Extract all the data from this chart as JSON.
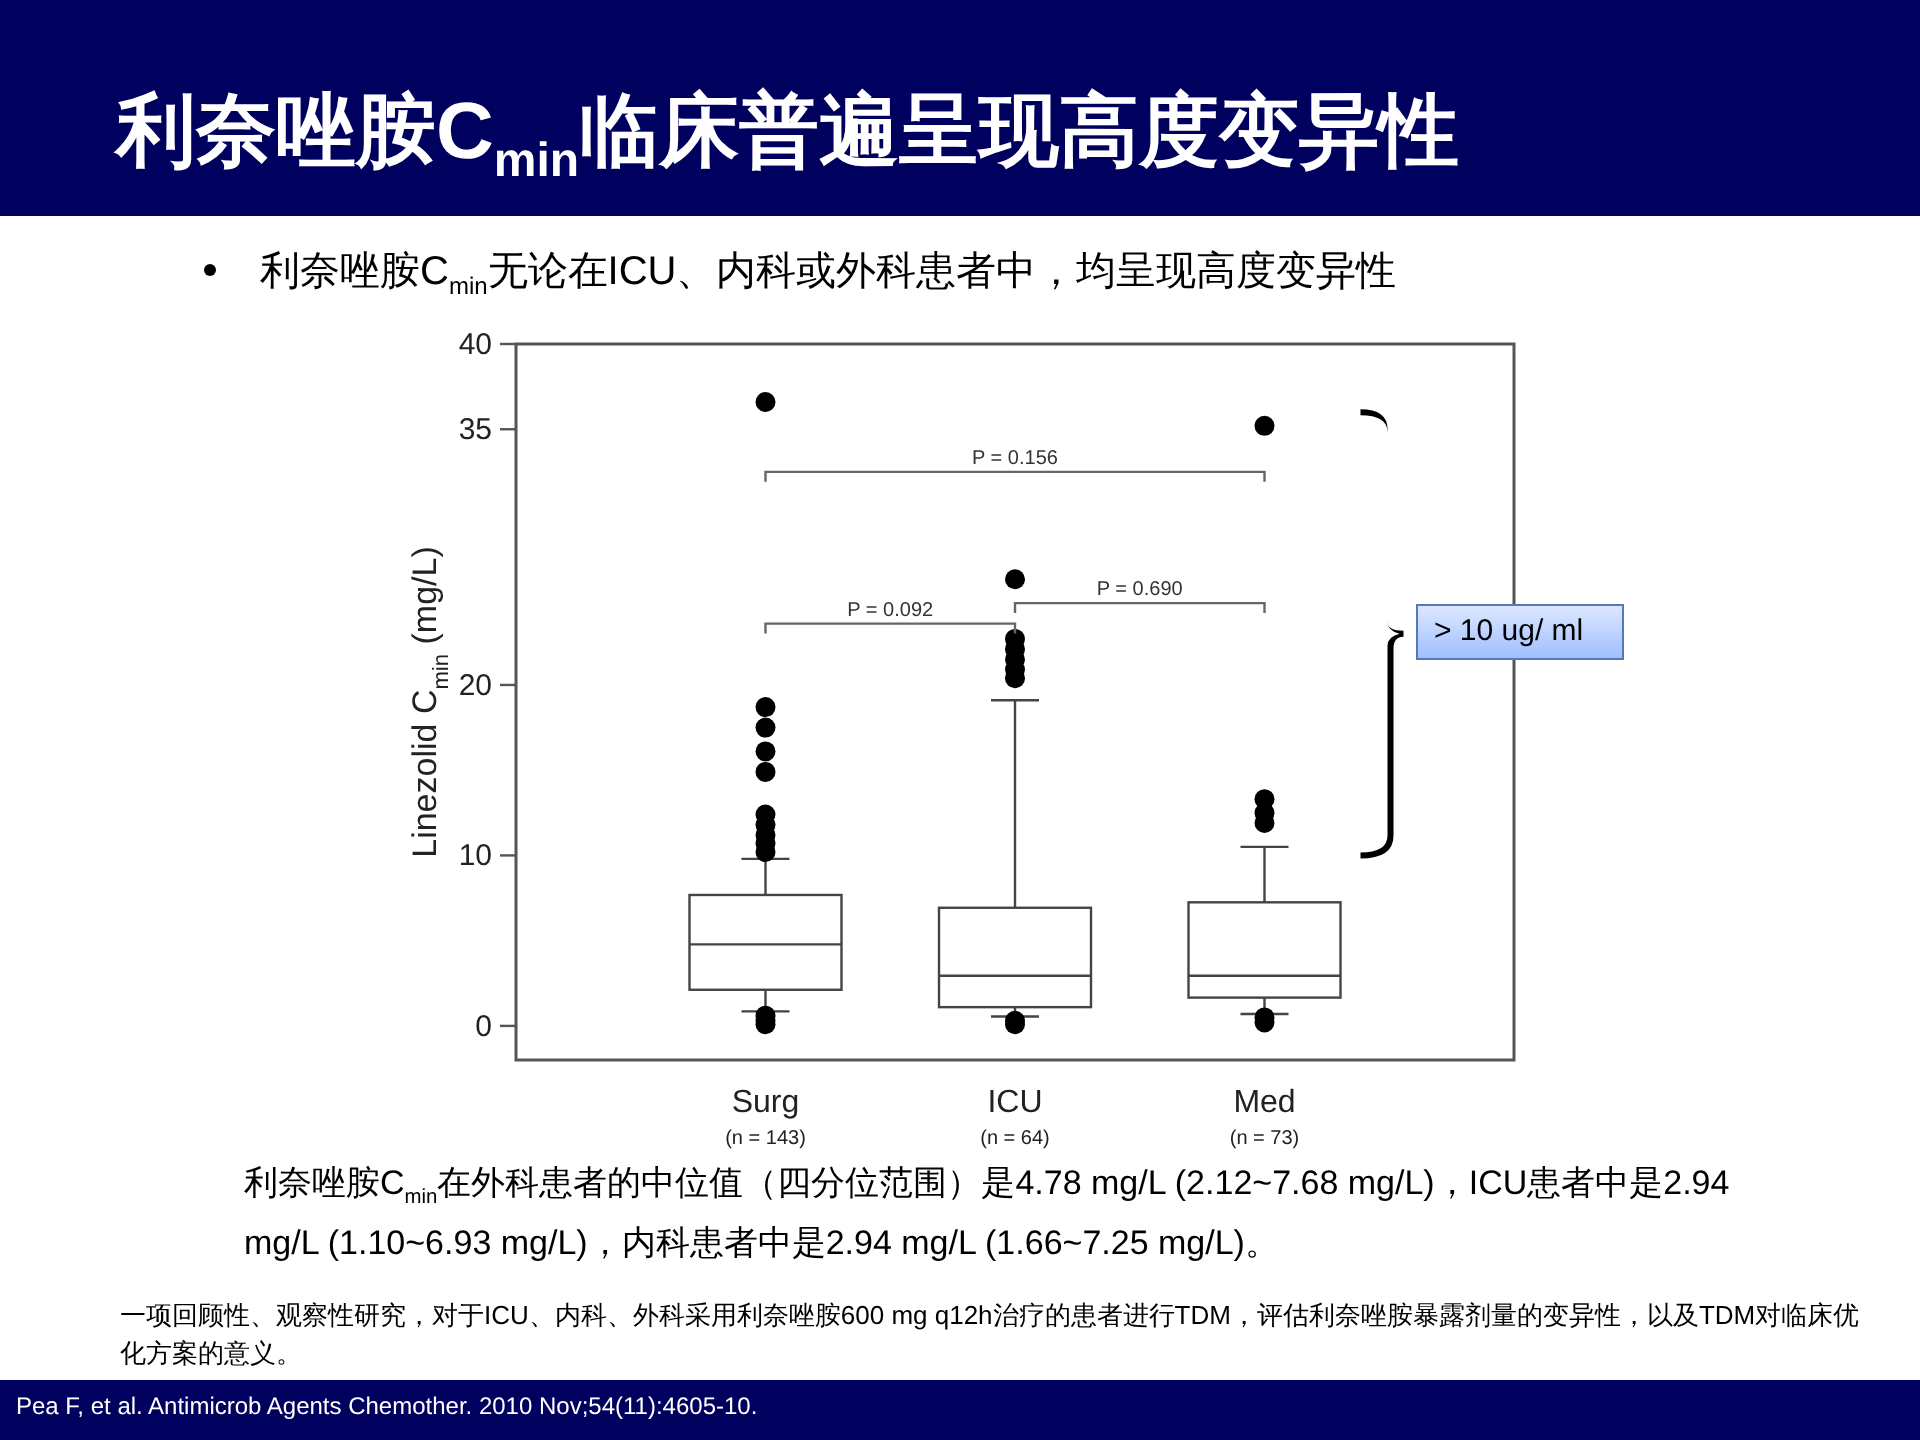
{
  "chart_data": {
    "type": "box",
    "title": "利奈唑胺C$_{min}$临床普遍呈现高度变异性",
    "subtitle": "利奈唑胺C$_{min}$无论在ICU、内科或外科患者中，均呈现高度变异性",
    "ylabel": "Linezolid C$_{min}$ (mg/L)",
    "categories": [
      "Surg\n(n = 143)",
      "ICU\n(n = 64)",
      "Med\n(n = 73)"
    ],
    "ylim": [
      -2,
      40
    ],
    "yticks": [
      0,
      10,
      20,
      35,
      40
    ],
    "grid": false,
    "boxes": [
      {
        "low": 0.85,
        "q1": 2.12,
        "median": 4.78,
        "q3": 7.68,
        "high": 9.8,
        "outliers": [
          36.6,
          18.7,
          17.5,
          16.1,
          14.9,
          12.4,
          11.8,
          11.2,
          10.7,
          10.2,
          0.6,
          0.3,
          0.1
        ]
      },
      {
        "low": 0.55,
        "q1": 1.1,
        "median": 2.94,
        "q3": 6.93,
        "high": 19.1,
        "outliers": [
          26.2,
          22.7,
          22.1,
          21.5,
          20.9,
          20.4,
          0.3,
          0.1
        ]
      },
      {
        "low": 0.7,
        "q1": 1.66,
        "median": 2.94,
        "q3": 7.25,
        "high": 10.5,
        "outliers": [
          35.2,
          13.3,
          12.5,
          11.9,
          0.5,
          0.2
        ]
      }
    ],
    "annotations": [
      "P = 0.156",
      "P = 0.092",
      "P = 0.690",
      "> 10 ug/ ml",
      "利奈唑胺C$_{min}$在外科患者的中位值（四分位范围）是4.78 mg/L (2.12~7.68 mg/L)，ICU患者中是2.94 mg/L (1.10~6.93 mg/L)，内科患者中是2.94 mg/L (1.66~7.25 mg/L)。",
      "一项回顾性、观察性研究，对于ICU、内科、外科采用利奈唑胺600 mg q12h治疗的患者进行TDM，评估利奈唑胺暴露剂量的变异性，以及TDM对临床优化方案的意义。",
      "Pea F, et al. Antimicrob Agents Chemother. 2010 Nov;54(11):4605-10."
    ]
  }
}
